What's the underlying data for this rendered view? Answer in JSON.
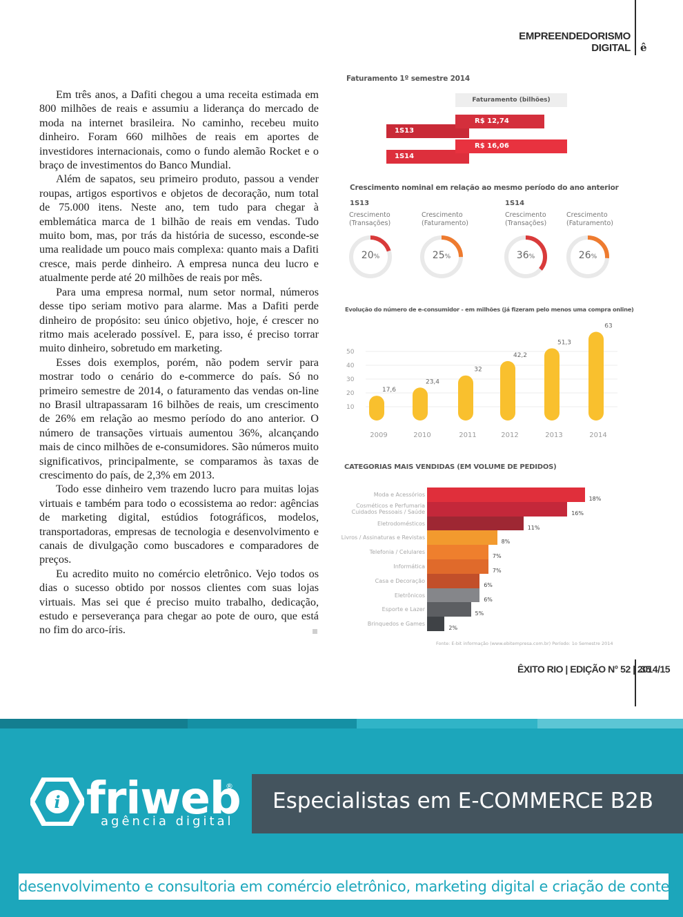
{
  "header": {
    "section_line1": "EMPREENDEDORISMO",
    "section_line2": "DIGITAL",
    "logo": "ê"
  },
  "article": {
    "paragraphs": [
      "Em três anos, a Dafiti chegou a uma receita estimada em 800 milhões de reais e assumiu a liderança do mercado de moda na internet brasileira. No caminho, recebeu muito dinheiro. Foram 660 milhões de reais em aportes de investidores internacionais, como o fundo alemão Rocket e o braço de investimentos do Banco Mundial.",
      "Além de sapatos, seu primeiro produto, passou a vender roupas, artigos esportivos e objetos de decoração, num total de 75.000 itens. Neste ano, tem tudo para chegar à emblemática marca de 1 bilhão de reais em vendas. Tudo muito bom, mas, por trás da história de sucesso, esconde-se uma realidade um pouco mais complexa: quanto mais a Dafiti cresce, mais perde dinheiro. A empresa nunca deu lucro e atualmente perde até 20 milhões de reais por mês.",
      "Para uma empresa normal, num setor normal, números desse tipo seriam motivo para alarme. Mas a Dafiti perde dinheiro de propósito: seu único objetivo, hoje, é crescer no ritmo mais acelerado possível. E, para isso, é preciso torrar muito dinheiro, sobretudo em marketing.",
      "Esses dois exemplos, porém, não podem servir para mostrar todo o cenário do e-commerce do país. Só no primeiro semestre de 2014, o faturamento das vendas on-line no Brasil ultrapassaram 16 bilhões de reais, um crescimento de 26% em relação ao mesmo período do ano anterior. O número de transações virtuais aumentou 36%, alcançando mais de cinco milhões de e-consumidores. São números muito significativos, principalmente, se comparamos às taxas de crescimento do país, de 2,3% em 2013.",
      "Todo esse dinheiro vem trazendo lucro para muitas lojas virtuais e também para todo o ecossistema ao redor: agências de marketing digital, estúdios fotográficos, modelos, transportadoras, empresas de tecnologia e desenvolvimento e canais de divulgação como buscadores e comparadores de preços.",
      "Eu acredito muito no comércio eletrônico. Vejo todos os dias o sucesso obtido por nossos clientes com suas lojas virtuais. Mas sei que é preciso muito trabalho, dedicação, estudo e perseverança para chegar ao pote de ouro, que está no fim do arco-íris."
    ]
  },
  "chart_data": [
    {
      "type": "bar",
      "title": "Faturamento 1º semestre 2014",
      "legend": "Faturamento (bilhões)",
      "categories": [
        "1S13",
        "1S14"
      ],
      "values": [
        12.74,
        16.06
      ],
      "value_labels": [
        "R$ 12,74",
        "R$ 16,06"
      ],
      "colors": [
        "#d42f3c",
        "#e8323f"
      ]
    },
    {
      "type": "pie",
      "title": "Crescimento nominal em relação ao mesmo período do ano anterior",
      "groups": [
        {
          "name": "1S13",
          "items": [
            {
              "label_line1": "Crescimento",
              "label_line2": "(Transações)",
              "value": 20,
              "number": "20",
              "unit": "%",
              "color": "#d93a3a"
            },
            {
              "label_line1": "Crescimento",
              "label_line2": "(Faturamento)",
              "value": 25,
              "number": "25",
              "unit": "%",
              "color": "#ee7b2f"
            }
          ]
        },
        {
          "name": "1S14",
          "items": [
            {
              "label_line1": "Crescimento",
              "label_line2": "(Transações)",
              "value": 36,
              "number": "36",
              "unit": "%",
              "color": "#d93a3a"
            },
            {
              "label_line1": "Crescimento",
              "label_line2": "(Faturamento)",
              "value": 26,
              "number": "26",
              "unit": "%",
              "color": "#ee7b2f"
            }
          ]
        }
      ]
    },
    {
      "type": "bar",
      "title": "Evolução do número de e-consumidor - em milhões (já fizeram pelo menos uma compra online)",
      "categories": [
        "2009",
        "2010",
        "2011",
        "2012",
        "2013",
        "2014"
      ],
      "values": [
        17.6,
        23.4,
        32,
        42.2,
        51.3,
        63
      ],
      "value_labels": [
        "17,6",
        "23,4",
        "32",
        "42,2",
        "51,3",
        "63"
      ],
      "yticks": [
        "10",
        "20",
        "30",
        "40",
        "50"
      ],
      "ylim": [
        0,
        63
      ],
      "color": "#f9c02e"
    },
    {
      "type": "bar",
      "orientation": "horizontal",
      "title": "CATEGORIAS MAIS VENDIDAS (EM VOLUME DE PEDIDOS)",
      "categories": [
        [
          "Moda e Acessórios"
        ],
        [
          "Cosméticos e Perfumaria",
          "Cuidados Pessoais / Saúde"
        ],
        [
          "Eletrodomésticos"
        ],
        [
          "Livros / Assinaturas e Revistas"
        ],
        [
          "Telefonia / Celulares"
        ],
        [
          "Informática"
        ],
        [
          "Casa e Decoração"
        ],
        [
          "Eletrônicos"
        ],
        [
          "Esporte e Lazer"
        ],
        [
          "Brinquedos e Games"
        ]
      ],
      "values": [
        18,
        16,
        11,
        8,
        7,
        7,
        6,
        6,
        5,
        2
      ],
      "value_labels": [
        "18%",
        "16%",
        "11%",
        "8%",
        "7%",
        "7%",
        "6%",
        "6%",
        "5%",
        "2%"
      ],
      "colors": [
        "#e02f3b",
        "#c4283a",
        "#9e2733",
        "#f29a2e",
        "#ef7f2d",
        "#e06a2b",
        "#c24f2a",
        "#85868a",
        "#5c5e62",
        "#3f4246"
      ],
      "source": "Fonte: E-bit informação (www.ebitempresa.com.br) Período: 1o Semestre 2014"
    }
  ],
  "footer": {
    "folio": "ÊXITO RIO | EDIÇÃO N° 52 | 2014/15",
    "page_number": "35"
  },
  "ad": {
    "brand": "friweb",
    "registered": "®",
    "brand_sub": "agência digital",
    "headline": "Especialistas em E-COMMERCE B2B",
    "tagline": "desenvolvimento e consultoria em comércio eletrônico, marketing digital e criação de conteúdo",
    "background_color": "#1ca6bb",
    "box_color": "#44545e"
  }
}
